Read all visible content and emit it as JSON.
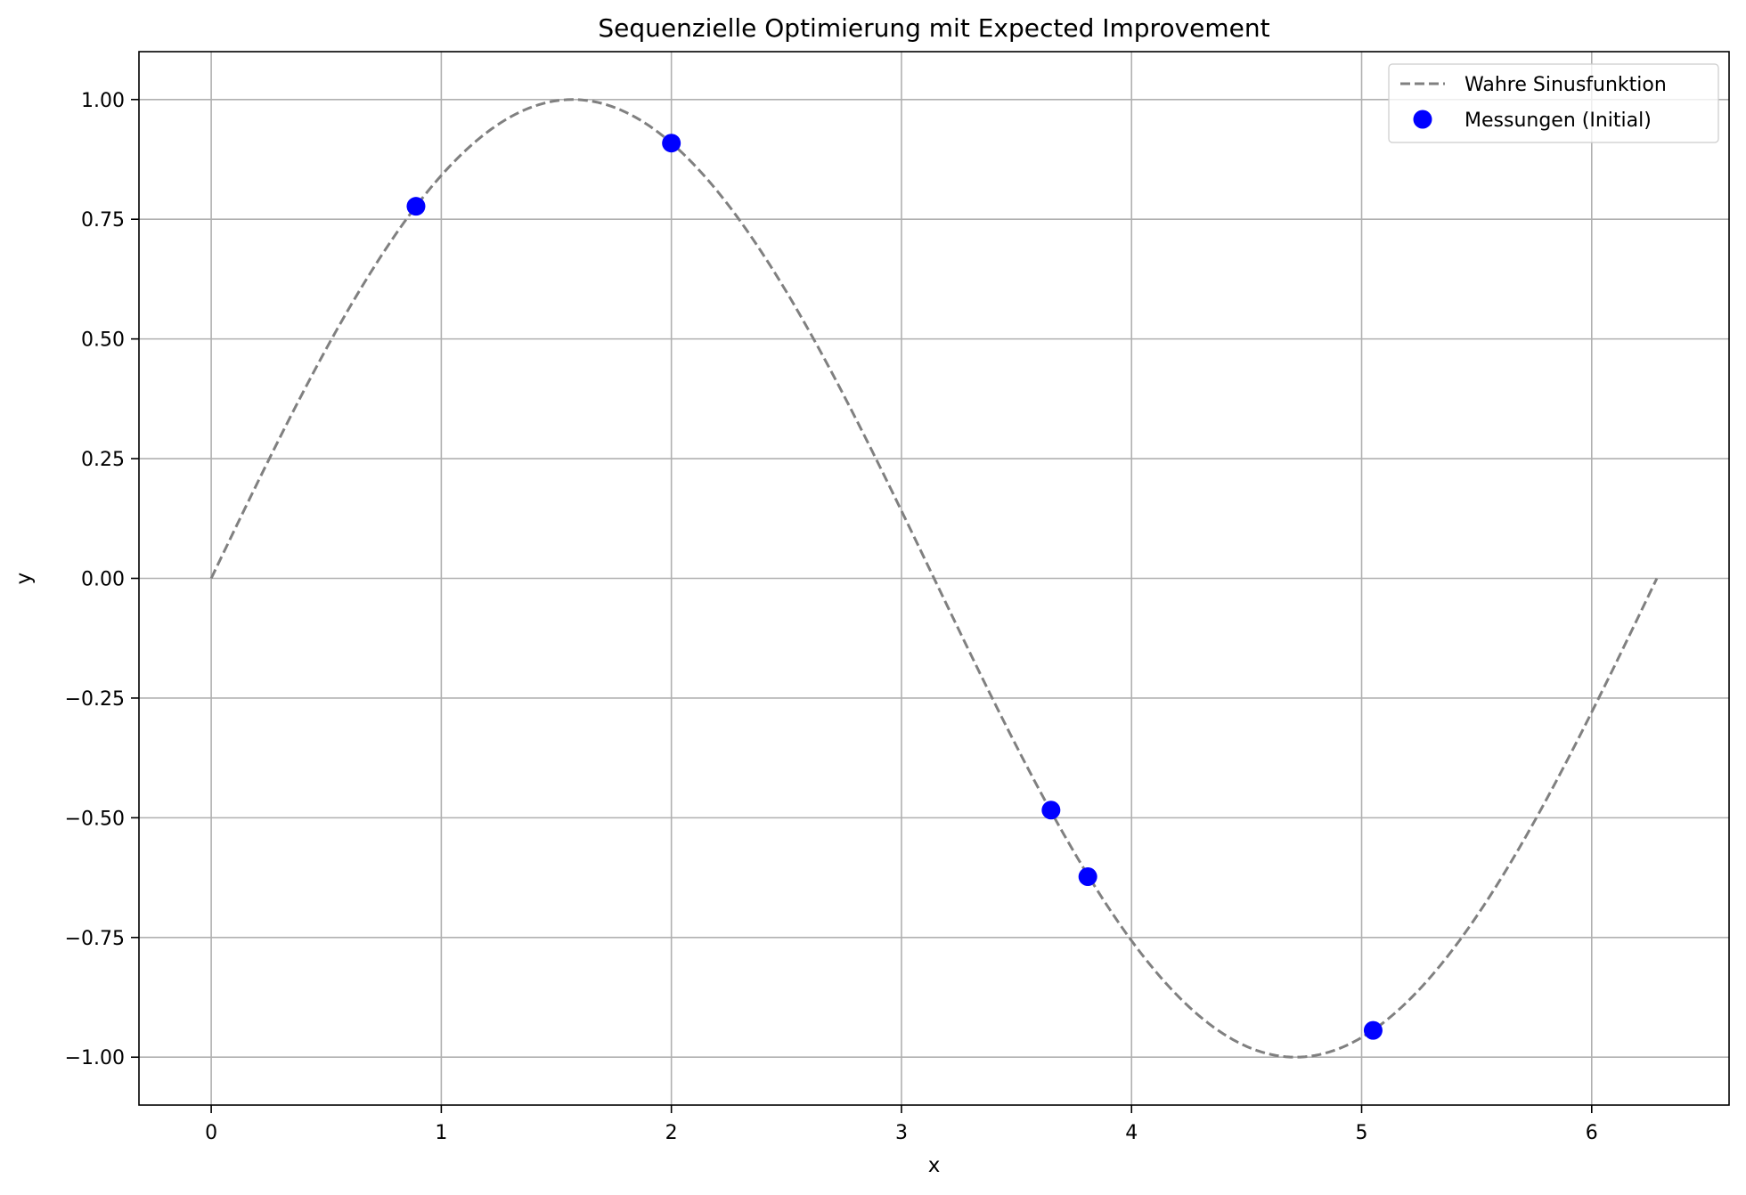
{
  "chart_data": {
    "type": "line",
    "title": "Sequenzielle Optimierung mit Expected Improvement",
    "xlabel": "x",
    "ylabel": "y",
    "xlim": [
      -0.314,
      6.597
    ],
    "ylim": [
      -1.1,
      1.1
    ],
    "xticks": [
      0,
      1,
      2,
      3,
      4,
      5,
      6
    ],
    "xtick_labels": [
      "0",
      "1",
      "2",
      "3",
      "4",
      "5",
      "6"
    ],
    "yticks": [
      -1.0,
      -0.75,
      -0.5,
      -0.25,
      0.0,
      0.25,
      0.5,
      0.75,
      1.0
    ],
    "ytick_labels": [
      "−1.00",
      "−0.75",
      "−0.50",
      "−0.25",
      "0.00",
      "0.25",
      "0.50",
      "0.75",
      "1.00"
    ],
    "grid": true,
    "legend_position": "top-right",
    "series": [
      {
        "name": "Wahre Sinusfunktion",
        "kind": "line",
        "style": "dashed",
        "color": "#808080",
        "function": "sin",
        "x_range": [
          0,
          6.283
        ]
      },
      {
        "name": "Messungen (Initial)",
        "kind": "scatter",
        "color": "#0000ff",
        "x": [
          0.89,
          2.0,
          3.65,
          3.81,
          5.05
        ],
        "y": [
          0.777,
          0.909,
          -0.484,
          -0.623,
          -0.944
        ]
      }
    ]
  }
}
